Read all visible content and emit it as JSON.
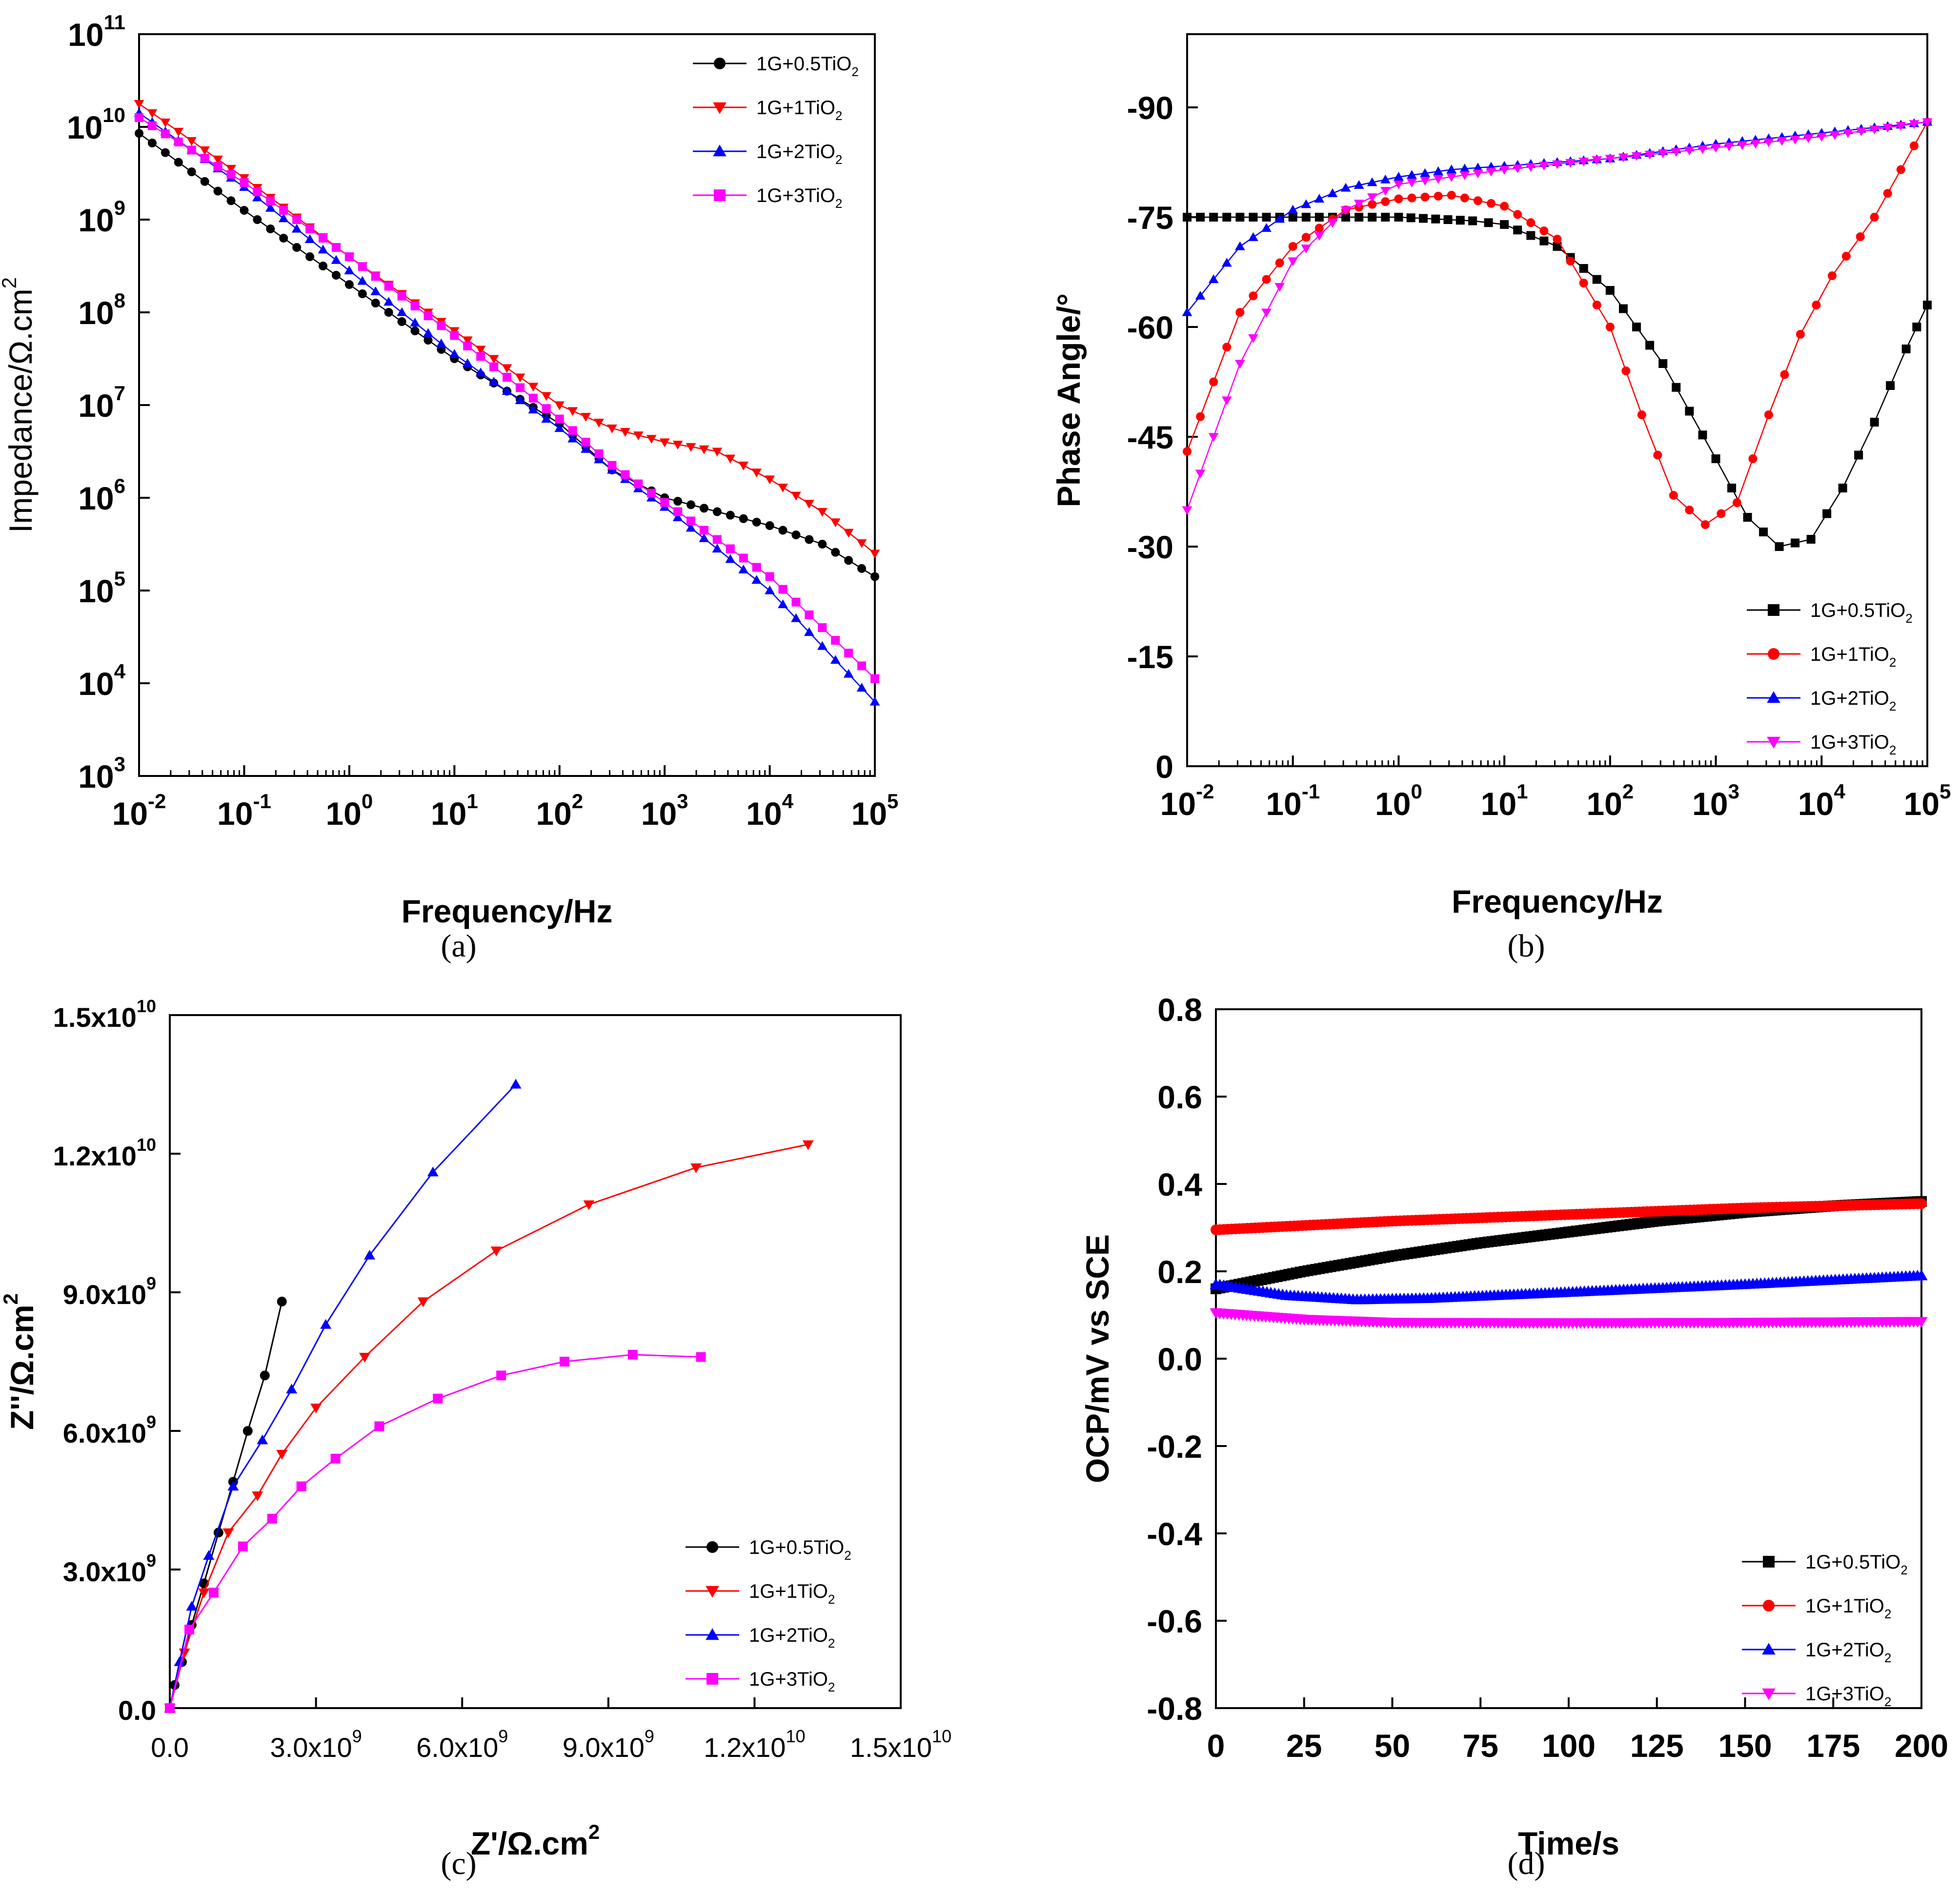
{
  "colors": {
    "black": "#000000",
    "red": "#ff0000",
    "blue": "#0000ff",
    "magenta": "#ff00ff"
  },
  "chart_data": [
    {
      "id": "a",
      "type": "scatter",
      "caption": "(a)",
      "xlabel": "Frequency/Hz",
      "ylabel": "Impedance/Ω.cm",
      "ylabel_sup": "2",
      "x_scale": "log",
      "y_scale": "log",
      "xlim_exp": [
        -2,
        5
      ],
      "ylim_exp": [
        3,
        11
      ],
      "x_ticks": [
        {
          "base": "10",
          "exp": "-2"
        },
        {
          "base": "10",
          "exp": "-1"
        },
        {
          "base": "10",
          "exp": "0"
        },
        {
          "base": "10",
          "exp": "1"
        },
        {
          "base": "10",
          "exp": "2"
        },
        {
          "base": "10",
          "exp": "3"
        },
        {
          "base": "10",
          "exp": "4"
        },
        {
          "base": "10",
          "exp": "5"
        }
      ],
      "y_ticks": [
        {
          "base": "10",
          "exp": "3"
        },
        {
          "base": "10",
          "exp": "4"
        },
        {
          "base": "10",
          "exp": "5"
        },
        {
          "base": "10",
          "exp": "6"
        },
        {
          "base": "10",
          "exp": "7"
        },
        {
          "base": "10",
          "exp": "8"
        },
        {
          "base": "10",
          "exp": "9"
        },
        {
          "base": "10",
          "exp": "10"
        },
        {
          "base": "10",
          "exp": "11"
        }
      ],
      "legend_position": "top-right",
      "series": [
        {
          "name": "1G+0.5TiO",
          "sub": "2",
          "color": "black",
          "marker": "circle",
          "points_log": [
            [
              -2,
              9.93
            ],
            [
              -1,
              9.1
            ],
            [
              0,
              8.3
            ],
            [
              1,
              7.5
            ],
            [
              2,
              6.8
            ],
            [
              2.5,
              6.3
            ],
            [
              3,
              6.0
            ],
            [
              3.5,
              5.85
            ],
            [
              4,
              5.7
            ],
            [
              4.5,
              5.5
            ],
            [
              5,
              5.15
            ]
          ]
        },
        {
          "name": "1G+1TiO",
          "sub": "2",
          "color": "red",
          "marker": "triangle-down",
          "points_log": [
            [
              -2,
              10.25
            ],
            [
              -1,
              9.45
            ],
            [
              0,
              8.6
            ],
            [
              1,
              7.8
            ],
            [
              2,
              7.0
            ],
            [
              2.5,
              6.75
            ],
            [
              3,
              6.6
            ],
            [
              3.5,
              6.5
            ],
            [
              4,
              6.2
            ],
            [
              4.5,
              5.85
            ],
            [
              5,
              5.4
            ]
          ]
        },
        {
          "name": "1G+2TiO",
          "sub": "2",
          "color": "blue",
          "marker": "triangle-up",
          "points_log": [
            [
              -2,
              10.15
            ],
            [
              -1,
              9.35
            ],
            [
              0,
              8.45
            ],
            [
              1,
              7.55
            ],
            [
              2,
              6.75
            ],
            [
              2.5,
              6.3
            ],
            [
              3,
              5.9
            ],
            [
              3.5,
              5.45
            ],
            [
              4,
              5.0
            ],
            [
              4.5,
              4.4
            ],
            [
              5,
              3.8
            ]
          ]
        },
        {
          "name": "1G+3TiO",
          "sub": "2",
          "color": "magenta",
          "marker": "square",
          "points_log": [
            [
              -2,
              10.1
            ],
            [
              -1,
              9.4
            ],
            [
              0,
              8.6
            ],
            [
              1,
              7.75
            ],
            [
              2,
              6.85
            ],
            [
              2.5,
              6.35
            ],
            [
              3,
              5.95
            ],
            [
              3.5,
              5.55
            ],
            [
              4,
              5.15
            ],
            [
              4.5,
              4.6
            ],
            [
              5,
              4.05
            ]
          ]
        }
      ]
    },
    {
      "id": "b",
      "type": "scatter",
      "caption": "(b)",
      "xlabel": "Frequency/Hz",
      "ylabel": "Phase Angle/°",
      "x_scale": "log",
      "xlim_exp": [
        -2,
        5
      ],
      "ylim": [
        0,
        -100
      ],
      "y_ticks": [
        "0",
        "-15",
        "-30",
        "-45",
        "-60",
        "-75",
        "-90"
      ],
      "y_tick_values": [
        0,
        -15,
        -30,
        -45,
        -60,
        -75,
        -90
      ],
      "x_ticks": [
        {
          "base": "10",
          "exp": "-2"
        },
        {
          "base": "10",
          "exp": "-1"
        },
        {
          "base": "10",
          "exp": "0"
        },
        {
          "base": "10",
          "exp": "1"
        },
        {
          "base": "10",
          "exp": "2"
        },
        {
          "base": "10",
          "exp": "3"
        },
        {
          "base": "10",
          "exp": "4"
        },
        {
          "base": "10",
          "exp": "5"
        }
      ],
      "legend_position": "bottom-right",
      "series": [
        {
          "name": "1G+0.5TiO",
          "sub": "2",
          "color": "black",
          "marker": "square",
          "points_log": [
            [
              -2,
              -75
            ],
            [
              -1,
              -75
            ],
            [
              0,
              -75
            ],
            [
              0.7,
              -74.5
            ],
            [
              1,
              -74
            ],
            [
              1.5,
              -71
            ],
            [
              2,
              -65
            ],
            [
              2.5,
              -55
            ],
            [
              3,
              -42
            ],
            [
              3.3,
              -34
            ],
            [
              3.6,
              -30
            ],
            [
              3.9,
              -31
            ],
            [
              4.2,
              -38
            ],
            [
              4.5,
              -47
            ],
            [
              4.8,
              -57
            ],
            [
              5,
              -63
            ]
          ]
        },
        {
          "name": "1G+1TiO",
          "sub": "2",
          "color": "red",
          "marker": "circle",
          "points_log": [
            [
              -2,
              -43
            ],
            [
              -1.5,
              -62
            ],
            [
              -1,
              -71
            ],
            [
              -0.5,
              -76
            ],
            [
              0,
              -77.5
            ],
            [
              0.5,
              -78
            ],
            [
              1,
              -76.5
            ],
            [
              1.5,
              -72
            ],
            [
              2,
              -60
            ],
            [
              2.3,
              -48
            ],
            [
              2.6,
              -37
            ],
            [
              2.9,
              -33
            ],
            [
              3.2,
              -36
            ],
            [
              3.5,
              -48
            ],
            [
              3.8,
              -59
            ],
            [
              4.1,
              -67
            ],
            [
              4.5,
              -75
            ],
            [
              5,
              -88
            ]
          ]
        },
        {
          "name": "1G+2TiO",
          "sub": "2",
          "color": "blue",
          "marker": "triangle-up",
          "points_log": [
            [
              -2,
              -62
            ],
            [
              -1.5,
              -71
            ],
            [
              -1,
              -76
            ],
            [
              -0.5,
              -79
            ],
            [
              0,
              -80.5
            ],
            [
              0.5,
              -81.5
            ],
            [
              1,
              -82
            ],
            [
              2,
              -83
            ],
            [
              3,
              -85
            ],
            [
              4,
              -86.5
            ],
            [
              5,
              -88
            ]
          ]
        },
        {
          "name": "1G+3TiO",
          "sub": "2",
          "color": "magenta",
          "marker": "triangle-down",
          "points_log": [
            [
              -2,
              -35
            ],
            [
              -1.5,
              -55
            ],
            [
              -1,
              -69
            ],
            [
              -0.5,
              -76
            ],
            [
              0,
              -79.5
            ],
            [
              0.5,
              -80.5
            ],
            [
              1,
              -81.5
            ],
            [
              2,
              -83
            ],
            [
              3,
              -84.5
            ],
            [
              4,
              -86
            ],
            [
              5,
              -88
            ]
          ]
        }
      ]
    },
    {
      "id": "c",
      "type": "line",
      "caption": "(c)",
      "xlabel": "Z'/Ω.cm",
      "xlabel_sup": "2",
      "ylabel": "Z''/Ω.cm",
      "ylabel_sup": "2",
      "xlim": [
        0,
        15000000000
      ],
      "ylim": [
        0,
        15000000000
      ],
      "x_ticks": [
        {
          "mant": "0.0",
          "exp": ""
        },
        {
          "mant": "3.0x10",
          "exp": "9"
        },
        {
          "mant": "6.0x10",
          "exp": "9"
        },
        {
          "mant": "9.0x10",
          "exp": "9"
        },
        {
          "mant": "1.2x10",
          "exp": "10"
        },
        {
          "mant": "1.5x10",
          "exp": "10"
        }
      ],
      "y_ticks": [
        {
          "mant": "0.0",
          "exp": ""
        },
        {
          "mant": "3.0x10",
          "exp": "9"
        },
        {
          "mant": "6.0x10",
          "exp": "9"
        },
        {
          "mant": "9.0x10",
          "exp": "9"
        },
        {
          "mant": "1.2x10",
          "exp": "10"
        },
        {
          "mant": "1.5x10",
          "exp": "10"
        }
      ],
      "tick_values": [
        0,
        3000000000,
        6000000000,
        9000000000,
        12000000000,
        15000000000
      ],
      "legend_position": "bottom-right",
      "series": [
        {
          "name": "1G+0.5TiO",
          "sub": "2",
          "color": "black",
          "marker": "circle",
          "points": [
            [
              0,
              0
            ],
            [
              100000000,
              500000000
            ],
            [
              250000000,
              1000000000
            ],
            [
              450000000,
              1800000000
            ],
            [
              700000000,
              2700000000
            ],
            [
              1000000000,
              3800000000
            ],
            [
              1300000000,
              4900000000
            ],
            [
              1600000000,
              6000000000
            ],
            [
              1950000000,
              7200000000
            ],
            [
              2300000000,
              8800000000
            ]
          ]
        },
        {
          "name": "1G+1TiO",
          "sub": "2",
          "color": "red",
          "marker": "triangle-down",
          "points": [
            [
              0,
              0
            ],
            [
              300000000,
              1200000000
            ],
            [
              700000000,
              2500000000
            ],
            [
              1200000000,
              3800000000
            ],
            [
              1800000000,
              4600000000
            ],
            [
              2300000000,
              5500000000
            ],
            [
              3000000000,
              6500000000
            ],
            [
              4000000000,
              7600000000
            ],
            [
              5200000000,
              8800000000
            ],
            [
              6700000000,
              9900000000
            ],
            [
              8600000000,
              10900000000
            ],
            [
              10800000000,
              11700000000
            ],
            [
              13100000000,
              12200000000
            ]
          ]
        },
        {
          "name": "1G+2TiO",
          "sub": "2",
          "color": "blue",
          "marker": "triangle-up",
          "points": [
            [
              0,
              0
            ],
            [
              200000000,
              1000000000
            ],
            [
              450000000,
              2200000000
            ],
            [
              800000000,
              3300000000
            ],
            [
              1300000000,
              4800000000
            ],
            [
              1900000000,
              5800000000
            ],
            [
              2500000000,
              6900000000
            ],
            [
              3200000000,
              8300000000
            ],
            [
              4100000000,
              9800000000
            ],
            [
              5400000000,
              11600000000
            ],
            [
              7100000000,
              13500000000
            ]
          ]
        },
        {
          "name": "1G+3TiO",
          "sub": "2",
          "color": "magenta",
          "marker": "square",
          "points": [
            [
              0,
              0
            ],
            [
              400000000,
              1700000000
            ],
            [
              900000000,
              2500000000
            ],
            [
              1500000000,
              3500000000
            ],
            [
              2100000000,
              4100000000
            ],
            [
              2700000000,
              4800000000
            ],
            [
              3400000000,
              5400000000
            ],
            [
              4300000000,
              6100000000
            ],
            [
              5500000000,
              6700000000
            ],
            [
              6800000000,
              7200000000
            ],
            [
              8100000000,
              7500000000
            ],
            [
              9500000000,
              7650000000
            ],
            [
              10900000000,
              7600000000
            ]
          ]
        }
      ]
    },
    {
      "id": "d",
      "type": "scatter",
      "caption": "(d)",
      "xlabel": "Time/s",
      "ylabel": "OCP/mV vs SCE",
      "xlim": [
        0,
        200
      ],
      "ylim": [
        -0.8,
        0.8
      ],
      "x_ticks": [
        "0",
        "25",
        "50",
        "75",
        "100",
        "125",
        "150",
        "175",
        "200"
      ],
      "x_tick_values": [
        0,
        25,
        50,
        75,
        100,
        125,
        150,
        175,
        200
      ],
      "y_ticks": [
        "-0.8",
        "-0.6",
        "-0.4",
        "-0.2",
        "0.0",
        "0.2",
        "0.4",
        "0.6",
        "0.8"
      ],
      "y_tick_values": [
        -0.8,
        -0.6,
        -0.4,
        -0.2,
        0.0,
        0.2,
        0.4,
        0.6,
        0.8
      ],
      "legend_position": "bottom-right",
      "series": [
        {
          "name": "1G+0.5TiO",
          "sub": "2",
          "color": "black",
          "marker": "square",
          "points": [
            [
              0,
              0.16
            ],
            [
              25,
              0.2
            ],
            [
              50,
              0.235
            ],
            [
              75,
              0.265
            ],
            [
              100,
              0.29
            ],
            [
              125,
              0.315
            ],
            [
              150,
              0.335
            ],
            [
              175,
              0.35
            ],
            [
              200,
              0.36
            ]
          ]
        },
        {
          "name": "1G+1TiO",
          "sub": "2",
          "color": "red",
          "marker": "circle",
          "points": [
            [
              0,
              0.295
            ],
            [
              50,
              0.315
            ],
            [
              100,
              0.33
            ],
            [
              150,
              0.345
            ],
            [
              200,
              0.355
            ]
          ]
        },
        {
          "name": "1G+2TiO",
          "sub": "2",
          "color": "blue",
          "marker": "triangle-up",
          "points": [
            [
              0,
              0.17
            ],
            [
              20,
              0.145
            ],
            [
              40,
              0.135
            ],
            [
              60,
              0.138
            ],
            [
              100,
              0.152
            ],
            [
              150,
              0.17
            ],
            [
              200,
              0.19
            ]
          ]
        },
        {
          "name": "1G+3TiO",
          "sub": "2",
          "color": "magenta",
          "marker": "triangle-down",
          "points": [
            [
              0,
              0.105
            ],
            [
              25,
              0.09
            ],
            [
              50,
              0.083
            ],
            [
              100,
              0.082
            ],
            [
              150,
              0.083
            ],
            [
              200,
              0.085
            ]
          ]
        }
      ]
    }
  ]
}
